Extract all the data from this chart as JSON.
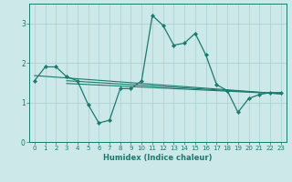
{
  "xlabel": "Humidex (Indice chaleur)",
  "xlim": [
    -0.5,
    23.5
  ],
  "ylim": [
    0,
    3.5
  ],
  "yticks": [
    0,
    1,
    2,
    3
  ],
  "xticks": [
    0,
    1,
    2,
    3,
    4,
    5,
    6,
    7,
    8,
    9,
    10,
    11,
    12,
    13,
    14,
    15,
    16,
    17,
    18,
    19,
    20,
    21,
    22,
    23
  ],
  "bg_color": "#cde8e8",
  "grid_color": "#aacece",
  "line_color": "#1a7a6e",
  "line1_x": [
    0,
    1,
    2,
    3,
    4,
    5,
    6,
    7,
    8,
    9,
    10,
    11,
    12,
    13,
    14,
    15,
    16,
    17,
    18,
    19,
    20,
    21,
    22,
    23
  ],
  "line1_y": [
    1.55,
    1.9,
    1.9,
    1.65,
    1.55,
    0.95,
    0.48,
    0.55,
    1.35,
    1.35,
    1.55,
    3.2,
    2.95,
    2.45,
    2.5,
    2.75,
    2.2,
    1.45,
    1.3,
    0.75,
    1.1,
    1.2,
    1.25,
    1.25
  ],
  "line2_x": [
    0,
    23
  ],
  "line2_y": [
    1.68,
    1.22
  ],
  "line3_x": [
    3,
    23
  ],
  "line3_y": [
    1.55,
    1.22
  ],
  "line4_x": [
    3,
    23
  ],
  "line4_y": [
    1.48,
    1.22
  ],
  "tick_fontsize": 5.0,
  "xlabel_fontsize": 6.0
}
